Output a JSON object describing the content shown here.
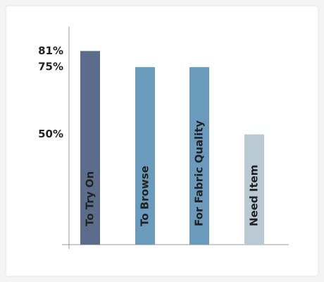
{
  "chart_data": {
    "type": "bar",
    "categories": [
      "To Try On",
      "To Browse",
      "For Fabric Quality",
      "Need Item"
    ],
    "values": [
      81,
      75,
      75,
      50
    ],
    "colors": [
      "#5a6e8c",
      "#6a9bbd",
      "#6a9bbd",
      "#b9cad4"
    ],
    "ylim": [
      9,
      90
    ],
    "yticks": [
      {
        "value": 50,
        "label": "50%"
      },
      {
        "value": 75,
        "label": "75%"
      },
      {
        "value": 81,
        "label": "81%"
      }
    ],
    "grid": false
  }
}
